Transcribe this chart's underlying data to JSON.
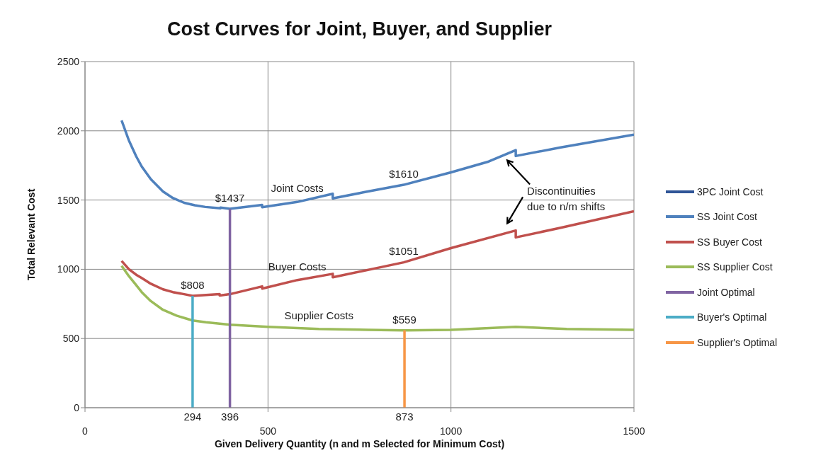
{
  "chart_data": {
    "type": "line",
    "title": "Cost Curves for Joint, Buyer, and Supplier",
    "xlabel": "Given Delivery Quantity (n and m Selected for Minimum Cost)",
    "ylabel": "Total Relevant Cost",
    "xlim": [
      0,
      1500
    ],
    "xticks": [
      0,
      500,
      1000,
      1500
    ],
    "ylim": [
      0,
      2500
    ],
    "yticks": [
      0,
      500,
      1000,
      1500,
      2000,
      2500
    ],
    "grid": true,
    "legend": "right",
    "marker": "none",
    "line_style": "solid",
    "series": [
      {
        "name": "3PC Joint Cost",
        "color": "#2f5597"
      },
      {
        "name": "SS Joint Cost",
        "color": "#4f81bd",
        "x": [
          100,
          120,
          140,
          155,
          180,
          213,
          240,
          271,
          300,
          329,
          370,
          370,
          396,
          484,
          484,
          580,
          677,
          677,
          760,
          871,
          1000,
          1103,
          1177,
          1177,
          1300,
          1500
        ],
        "values": [
          2075,
          1930,
          1815,
          1742,
          1650,
          1562,
          1515,
          1480,
          1462,
          1450,
          1440,
          1445,
          1437,
          1465,
          1448,
          1486,
          1545,
          1512,
          1555,
          1610,
          1700,
          1778,
          1860,
          1818,
          1880,
          1972
        ]
      },
      {
        "name": "SS Buyer Cost",
        "color": "#c0504d",
        "x": [
          100,
          120,
          140,
          155,
          180,
          213,
          240,
          271,
          294,
          368,
          368,
          396,
          484,
          484,
          580,
          677,
          677,
          871,
          1000,
          1177,
          1177,
          1300,
          1500
        ],
        "values": [
          1060,
          1000,
          960,
          937,
          895,
          855,
          835,
          820,
          808,
          820,
          810,
          820,
          876,
          860,
          922,
          967,
          942,
          1050,
          1153,
          1280,
          1230,
          1300,
          1419
        ]
      },
      {
        "name": "SS Supplier Cost",
        "color": "#9bbb59",
        "x": [
          100,
          120,
          140,
          155,
          180,
          213,
          250,
          294,
          330,
          396,
          500,
          639,
          774,
          873,
          1000,
          1177,
          1316,
          1500
        ],
        "values": [
          1025,
          950,
          885,
          835,
          770,
          707,
          665,
          630,
          617,
          600,
          584,
          569,
          563,
          559,
          563,
          584,
          569,
          563
        ]
      },
      {
        "name": "Joint Optimal",
        "color": "#8064a2",
        "x": [
          396,
          396
        ],
        "values": [
          0,
          1437
        ]
      },
      {
        "name": "Buyer's Optimal",
        "color": "#4bacc6",
        "x": [
          294,
          294
        ],
        "values": [
          0,
          808
        ]
      },
      {
        "name": "Supplier's Optimal",
        "color": "#f79646",
        "x": [
          873,
          873
        ],
        "values": [
          0,
          559
        ]
      }
    ],
    "annotations": [
      {
        "text": "$1437",
        "x": 396,
        "y": 1437
      },
      {
        "text": "$808",
        "x": 294,
        "y": 808
      },
      {
        "text": "$559",
        "x": 873,
        "y": 559
      },
      {
        "text": "$1610",
        "x": 871,
        "y": 1610
      },
      {
        "text": "$1051",
        "x": 871,
        "y": 1051
      },
      {
        "text": "294",
        "x": 294,
        "y": 0
      },
      {
        "text": "396",
        "x": 396,
        "y": 0
      },
      {
        "text": "873",
        "x": 873,
        "y": 0
      },
      {
        "text": "Joint Costs",
        "x": 580,
        "y": 1486
      },
      {
        "text": "Buyer Costs",
        "x": 580,
        "y": 922
      },
      {
        "text": "Supplier Costs",
        "x": 639,
        "y": 569
      },
      {
        "text": "Discontinuities due to n/m shifts",
        "x": 1177,
        "y": 1818
      }
    ]
  }
}
